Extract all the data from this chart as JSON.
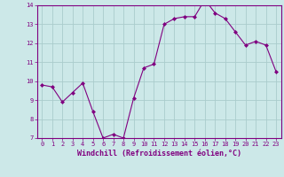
{
  "x": [
    0,
    1,
    2,
    3,
    4,
    5,
    6,
    7,
    8,
    9,
    10,
    11,
    12,
    13,
    14,
    15,
    16,
    17,
    18,
    19,
    20,
    21,
    22,
    23
  ],
  "y": [
    9.8,
    9.7,
    8.9,
    9.4,
    9.9,
    8.4,
    7.0,
    7.2,
    7.0,
    9.1,
    10.7,
    10.9,
    13.0,
    13.3,
    13.4,
    13.4,
    14.3,
    13.6,
    13.3,
    12.6,
    11.9,
    12.1,
    11.9,
    10.5
  ],
  "ylim": [
    7,
    14
  ],
  "yticks": [
    7,
    8,
    9,
    10,
    11,
    12,
    13,
    14
  ],
  "xticks": [
    0,
    1,
    2,
    3,
    4,
    5,
    6,
    7,
    8,
    9,
    10,
    11,
    12,
    13,
    14,
    15,
    16,
    17,
    18,
    19,
    20,
    21,
    22,
    23
  ],
  "xlabel": "Windchill (Refroidissement éolien,°C)",
  "line_color": "#800080",
  "marker": "D",
  "marker_size": 2.0,
  "bg_color": "#cce8e8",
  "grid_color": "#aacccc",
  "tick_color": "#800080",
  "label_color": "#800080",
  "font_family": "monospace",
  "tick_fontsize": 5.0,
  "label_fontsize": 6.0
}
